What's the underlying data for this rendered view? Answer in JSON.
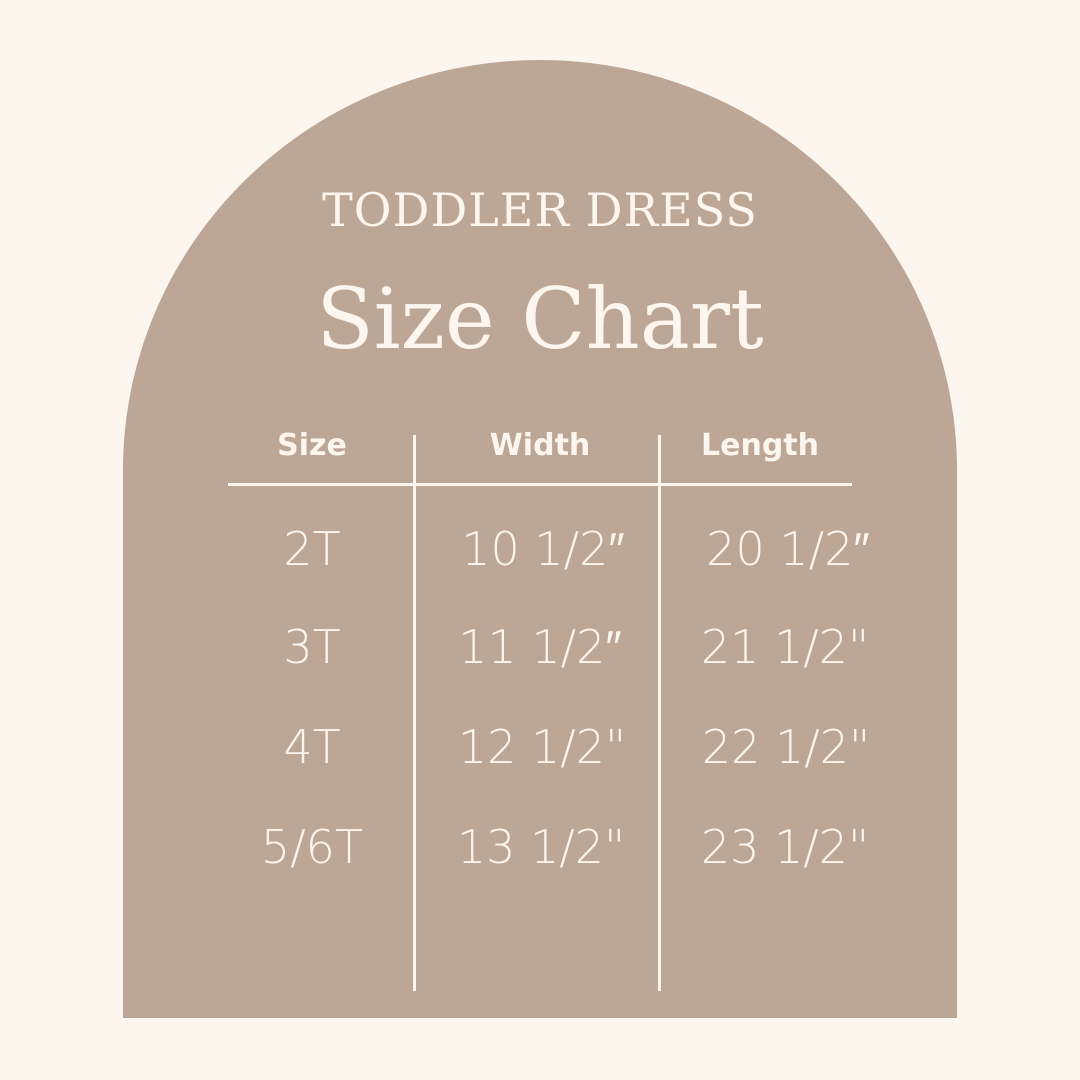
{
  "subtitle": "TODDLER DRESS",
  "title": "Size Chart",
  "colors": {
    "background": "#fdf6ef",
    "arch": "#bca797",
    "text": "#fdf6ee"
  },
  "table": {
    "headers": [
      "Size",
      "Width",
      "Length"
    ],
    "rows": [
      [
        "2T",
        "10 1/2″",
        "20 1/2″"
      ],
      [
        "3T",
        "11 1/2″",
        "21 1/2\""
      ],
      [
        "4T",
        "12 1/2\"",
        "22 1/2\""
      ],
      [
        "5/6T",
        "13 1/2\"",
        "23 1/2\""
      ]
    ]
  }
}
